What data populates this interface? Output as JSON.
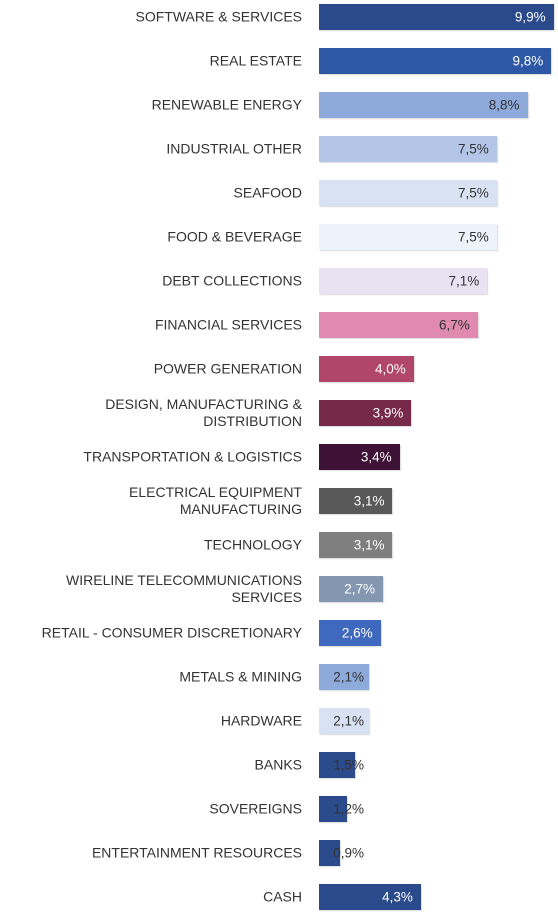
{
  "chart_data": {
    "type": "bar",
    "orientation": "horizontal",
    "categories": [
      "SOFTWARE & SERVICES",
      "REAL ESTATE",
      "RENEWABLE ENERGY",
      "INDUSTRIAL OTHER",
      "SEAFOOD",
      "FOOD & BEVERAGE",
      "DEBT COLLECTIONS",
      "FINANCIAL SERVICES",
      "POWER GENERATION",
      "DESIGN, MANUFACTURING &\nDISTRIBUTION",
      "TRANSPORTATION & LOGISTICS",
      "ELECTRICAL EQUIPMENT\nMANUFACTURING",
      "TECHNOLOGY",
      "WIRELINE TELECOMMUNICATIONS\nSERVICES",
      "RETAIL - CONSUMER DISCRETIONARY",
      "METALS & MINING",
      "HARDWARE",
      "BANKS",
      "SOVEREIGNS",
      "ENTERTAINMENT RESOURCES",
      "CASH"
    ],
    "values": [
      9.9,
      9.8,
      8.8,
      7.5,
      7.5,
      7.5,
      7.1,
      6.7,
      4.0,
      3.9,
      3.4,
      3.1,
      3.1,
      2.7,
      2.6,
      2.1,
      2.1,
      1.5,
      1.2,
      0.9,
      4.3
    ],
    "value_labels": [
      "9,9%",
      "9,8%",
      "8,8%",
      "7,5%",
      "7,5%",
      "7,5%",
      "7,1%",
      "6,7%",
      "4,0%",
      "3,9%",
      "3,4%",
      "3,1%",
      "3,1%",
      "2,7%",
      "2,6%",
      "2,1%",
      "2,1%",
      "1,5%",
      "1,2%",
      "0,9%",
      "4,3%"
    ],
    "colors": [
      "#2b4a8b",
      "#2e58a6",
      "#8eaadb",
      "#b4c6e7",
      "#d9e2f3",
      "#eef3fb",
      "#e9e2f2",
      "#e08ab2",
      "#b0466a",
      "#77294a",
      "#3e1236",
      "#595959",
      "#7f7f7f",
      "#8497b0",
      "#3f68bf",
      "#8eaadb",
      "#d9e2f3",
      "#2b4a8b",
      "#2b4a8b",
      "#2b4a8b",
      "#2b4a8b"
    ],
    "xlim": [
      0,
      10
    ]
  }
}
